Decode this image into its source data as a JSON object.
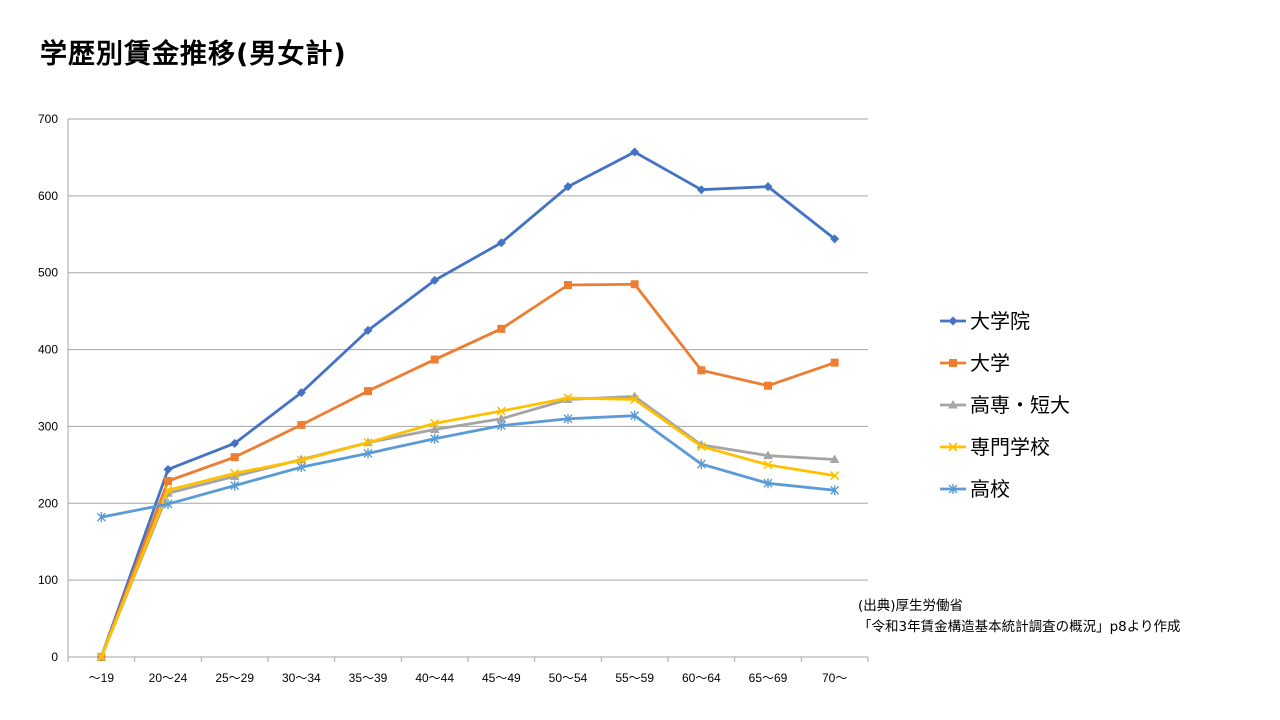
{
  "title": "学歴別賃金推移(男女計)",
  "source": {
    "line1": "(出典)厚生労働省",
    "line2": "「令和3年賃金構造基本統計調査の概況」p8より作成"
  },
  "chart_data": {
    "type": "line",
    "title": "学歴別賃金推移(男女計)",
    "xlabel": "",
    "ylabel": "",
    "ylim": [
      0,
      700
    ],
    "yticks": [
      0,
      100,
      200,
      300,
      400,
      500,
      600,
      700
    ],
    "grid": true,
    "legend_position": "right",
    "categories": [
      "～19",
      "20～24",
      "25～29",
      "30～34",
      "35～39",
      "40～44",
      "45～49",
      "50～54",
      "55～59",
      "60～64",
      "65～69",
      "70～"
    ],
    "series": [
      {
        "name": "大学院",
        "color": "#4472C4",
        "marker": "diamond",
        "values": [
          0,
          244,
          278,
          344,
          425,
          490,
          539,
          612,
          657,
          608,
          612,
          544
        ]
      },
      {
        "name": "大学",
        "color": "#ED7D31",
        "marker": "square",
        "values": [
          0,
          229,
          260,
          302,
          346,
          387,
          427,
          484,
          485,
          373,
          353,
          383
        ]
      },
      {
        "name": "高専・短大",
        "color": "#A5A5A5",
        "marker": "triangle",
        "values": [
          0,
          213,
          235,
          257,
          279,
          296,
          310,
          335,
          339,
          276,
          262,
          257
        ]
      },
      {
        "name": "専門学校",
        "color": "#FFC000",
        "marker": "x",
        "values": [
          0,
          217,
          239,
          256,
          279,
          304,
          320,
          337,
          335,
          274,
          250,
          236
        ]
      },
      {
        "name": "高校",
        "color": "#5B9BD5",
        "marker": "asterisk",
        "values": [
          182,
          199,
          223,
          247,
          265,
          284,
          301,
          310,
          314,
          251,
          226,
          217
        ]
      }
    ]
  }
}
